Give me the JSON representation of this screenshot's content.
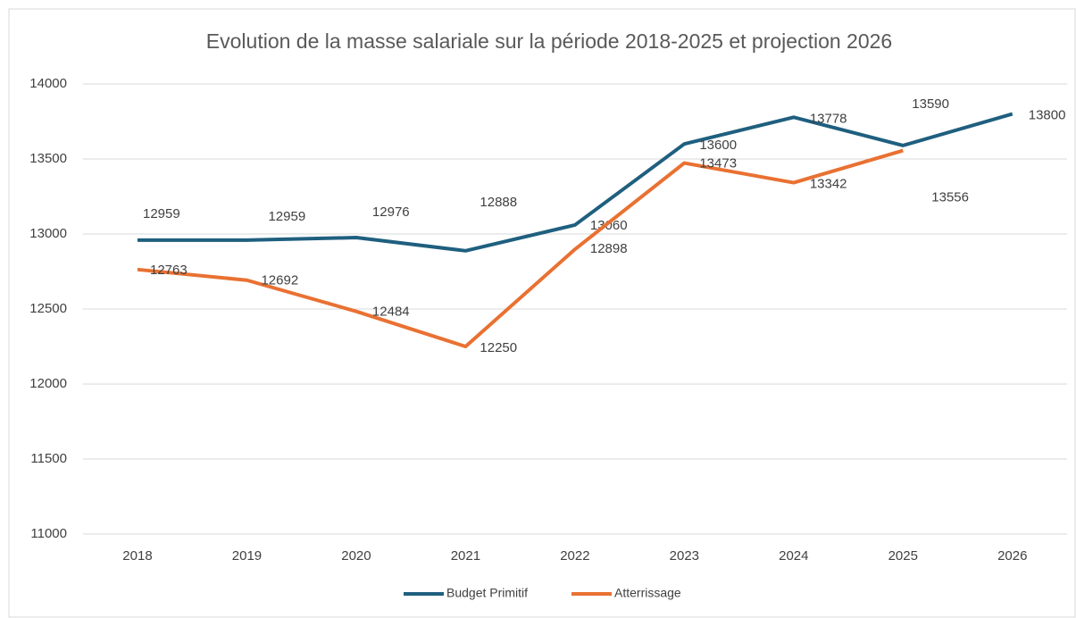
{
  "chart_data": {
    "type": "line",
    "title": "Evolution de la masse salariale sur la période 2018-2025 et projection 2026",
    "categories": [
      "2018",
      "2019",
      "2020",
      "2021",
      "2022",
      "2023",
      "2024",
      "2025",
      "2026"
    ],
    "series": [
      {
        "name": "Budget Primitif",
        "color": "#1f5f7f",
        "values": [
          12959,
          12959,
          12976,
          12888,
          13060,
          13600,
          13778,
          13590,
          13800
        ]
      },
      {
        "name": "Atterrissage",
        "color": "#e97132",
        "values": [
          12763,
          12692,
          12484,
          12250,
          12898,
          13473,
          13342,
          13556,
          null
        ]
      }
    ],
    "ylim": [
      11000,
      14000
    ],
    "yticks": [
      11000,
      11500,
      12000,
      12500,
      13000,
      13500,
      14000
    ],
    "grid": true,
    "legend": "bottom"
  }
}
